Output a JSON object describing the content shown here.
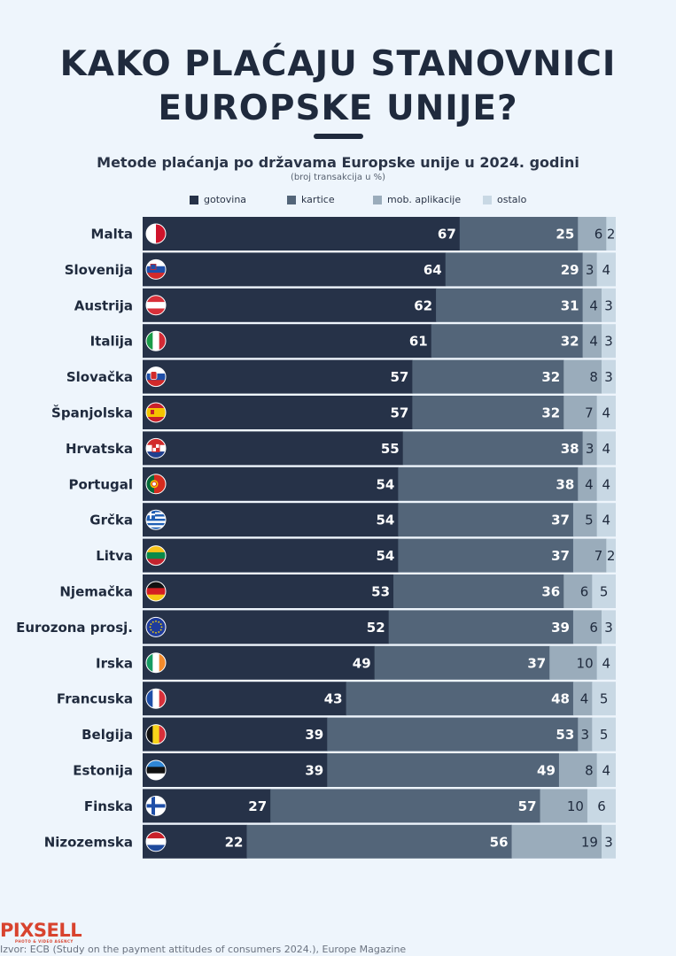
{
  "title_line1": "KAKO PLAĆAJU STANOVNICI",
  "title_line2": "EUROPSKE UNIJE?",
  "chart_data": {
    "type": "bar",
    "orientation": "horizontal",
    "stacked": true,
    "title": "Metode plaćanja po državama Europske unije u 2024. godini",
    "subtitle": "(broj transakcija u %)",
    "xlim": [
      0,
      100
    ],
    "legend_placement": "top",
    "categories": [
      "Malta",
      "Slovenija",
      "Austrija",
      "Italija",
      "Slovačka",
      "Španjolska",
      "Hrvatska",
      "Portugal",
      "Grčka",
      "Litva",
      "Njemačka",
      "Eurozona prosj.",
      "Irska",
      "Francuska",
      "Belgija",
      "Estonija",
      "Finska",
      "Nizozemska"
    ],
    "flags": [
      "malta-flag-icon",
      "slovenia-flag-icon",
      "austria-flag-icon",
      "italy-flag-icon",
      "slovakia-flag-icon",
      "spain-flag-icon",
      "croatia-flag-icon",
      "portugal-flag-icon",
      "greece-flag-icon",
      "lithuania-flag-icon",
      "germany-flag-icon",
      "eu-flag-icon",
      "ireland-flag-icon",
      "france-flag-icon",
      "belgium-flag-icon",
      "estonia-flag-icon",
      "finland-flag-icon",
      "netherlands-flag-icon"
    ],
    "series": [
      {
        "name": "gotovina",
        "color": "#263248",
        "values": [
          67,
          64,
          62,
          61,
          57,
          57,
          55,
          54,
          54,
          54,
          53,
          52,
          49,
          43,
          39,
          39,
          27,
          22
        ]
      },
      {
        "name": "kartice",
        "color": "#536579",
        "values": [
          25,
          29,
          31,
          32,
          32,
          32,
          38,
          38,
          37,
          37,
          36,
          39,
          37,
          48,
          53,
          49,
          57,
          56
        ]
      },
      {
        "name": "mob. aplikacije",
        "color": "#9aacbb",
        "values": [
          6,
          3,
          4,
          4,
          8,
          7,
          3,
          4,
          5,
          7,
          6,
          6,
          10,
          4,
          3,
          8,
          10,
          19
        ]
      },
      {
        "name": "ostalo",
        "color": "#c8d8e4",
        "values": [
          2,
          4,
          3,
          3,
          3,
          4,
          4,
          4,
          4,
          2,
          5,
          3,
          4,
          5,
          5,
          4,
          6,
          3
        ]
      }
    ]
  },
  "footer": {
    "logo": "PIXSELL",
    "logo_tagline": "PHOTO & VIDEO AGENCY",
    "source": "Izvor: ECB (Study on the payment attitudes of consumers 2024.), Europe Magazine"
  }
}
